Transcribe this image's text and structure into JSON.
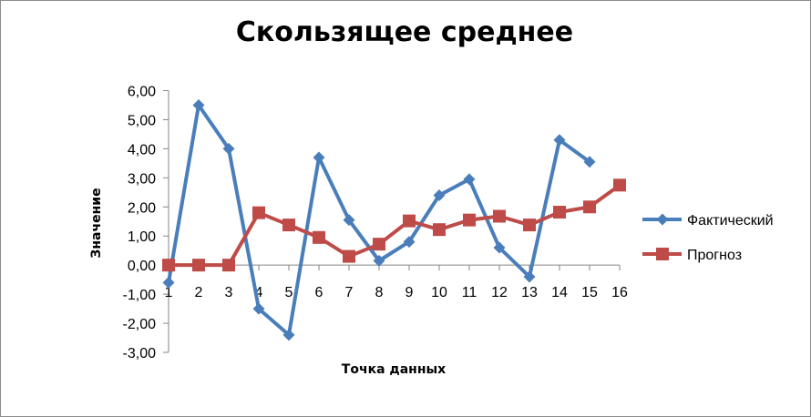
{
  "chart_data": {
    "type": "line",
    "title": "Скользящее среднее",
    "xlabel": "Точка данных",
    "ylabel": "Значение",
    "x": [
      1,
      2,
      3,
      4,
      5,
      6,
      7,
      8,
      9,
      10,
      11,
      12,
      13,
      14,
      15,
      16
    ],
    "ylim": [
      -3,
      6
    ],
    "ytick_labels": [
      "6,00",
      "5,00",
      "4,00",
      "3,00",
      "2,00",
      "1,00",
      "0,00",
      "-1,00",
      "-2,00",
      "-3,00"
    ],
    "ytick_values": [
      6,
      5,
      4,
      3,
      2,
      1,
      0,
      -1,
      -2,
      -3
    ],
    "grid": false,
    "legend_position": "right",
    "series": [
      {
        "name": "Фактический",
        "color": "#4a7ebb",
        "marker": "diamond",
        "values": [
          -0.6,
          5.5,
          4.0,
          -1.5,
          -2.4,
          3.7,
          1.55,
          0.15,
          0.8,
          2.4,
          2.95,
          0.6,
          -0.4,
          4.3,
          3.55,
          null
        ]
      },
      {
        "name": "Прогноз",
        "color": "#be4b48",
        "marker": "square",
        "values": [
          0.0,
          0.0,
          0.0,
          1.8,
          1.38,
          0.95,
          0.3,
          0.72,
          1.52,
          1.22,
          1.55,
          1.68,
          1.38,
          1.82,
          2.0,
          2.75
        ]
      }
    ]
  }
}
